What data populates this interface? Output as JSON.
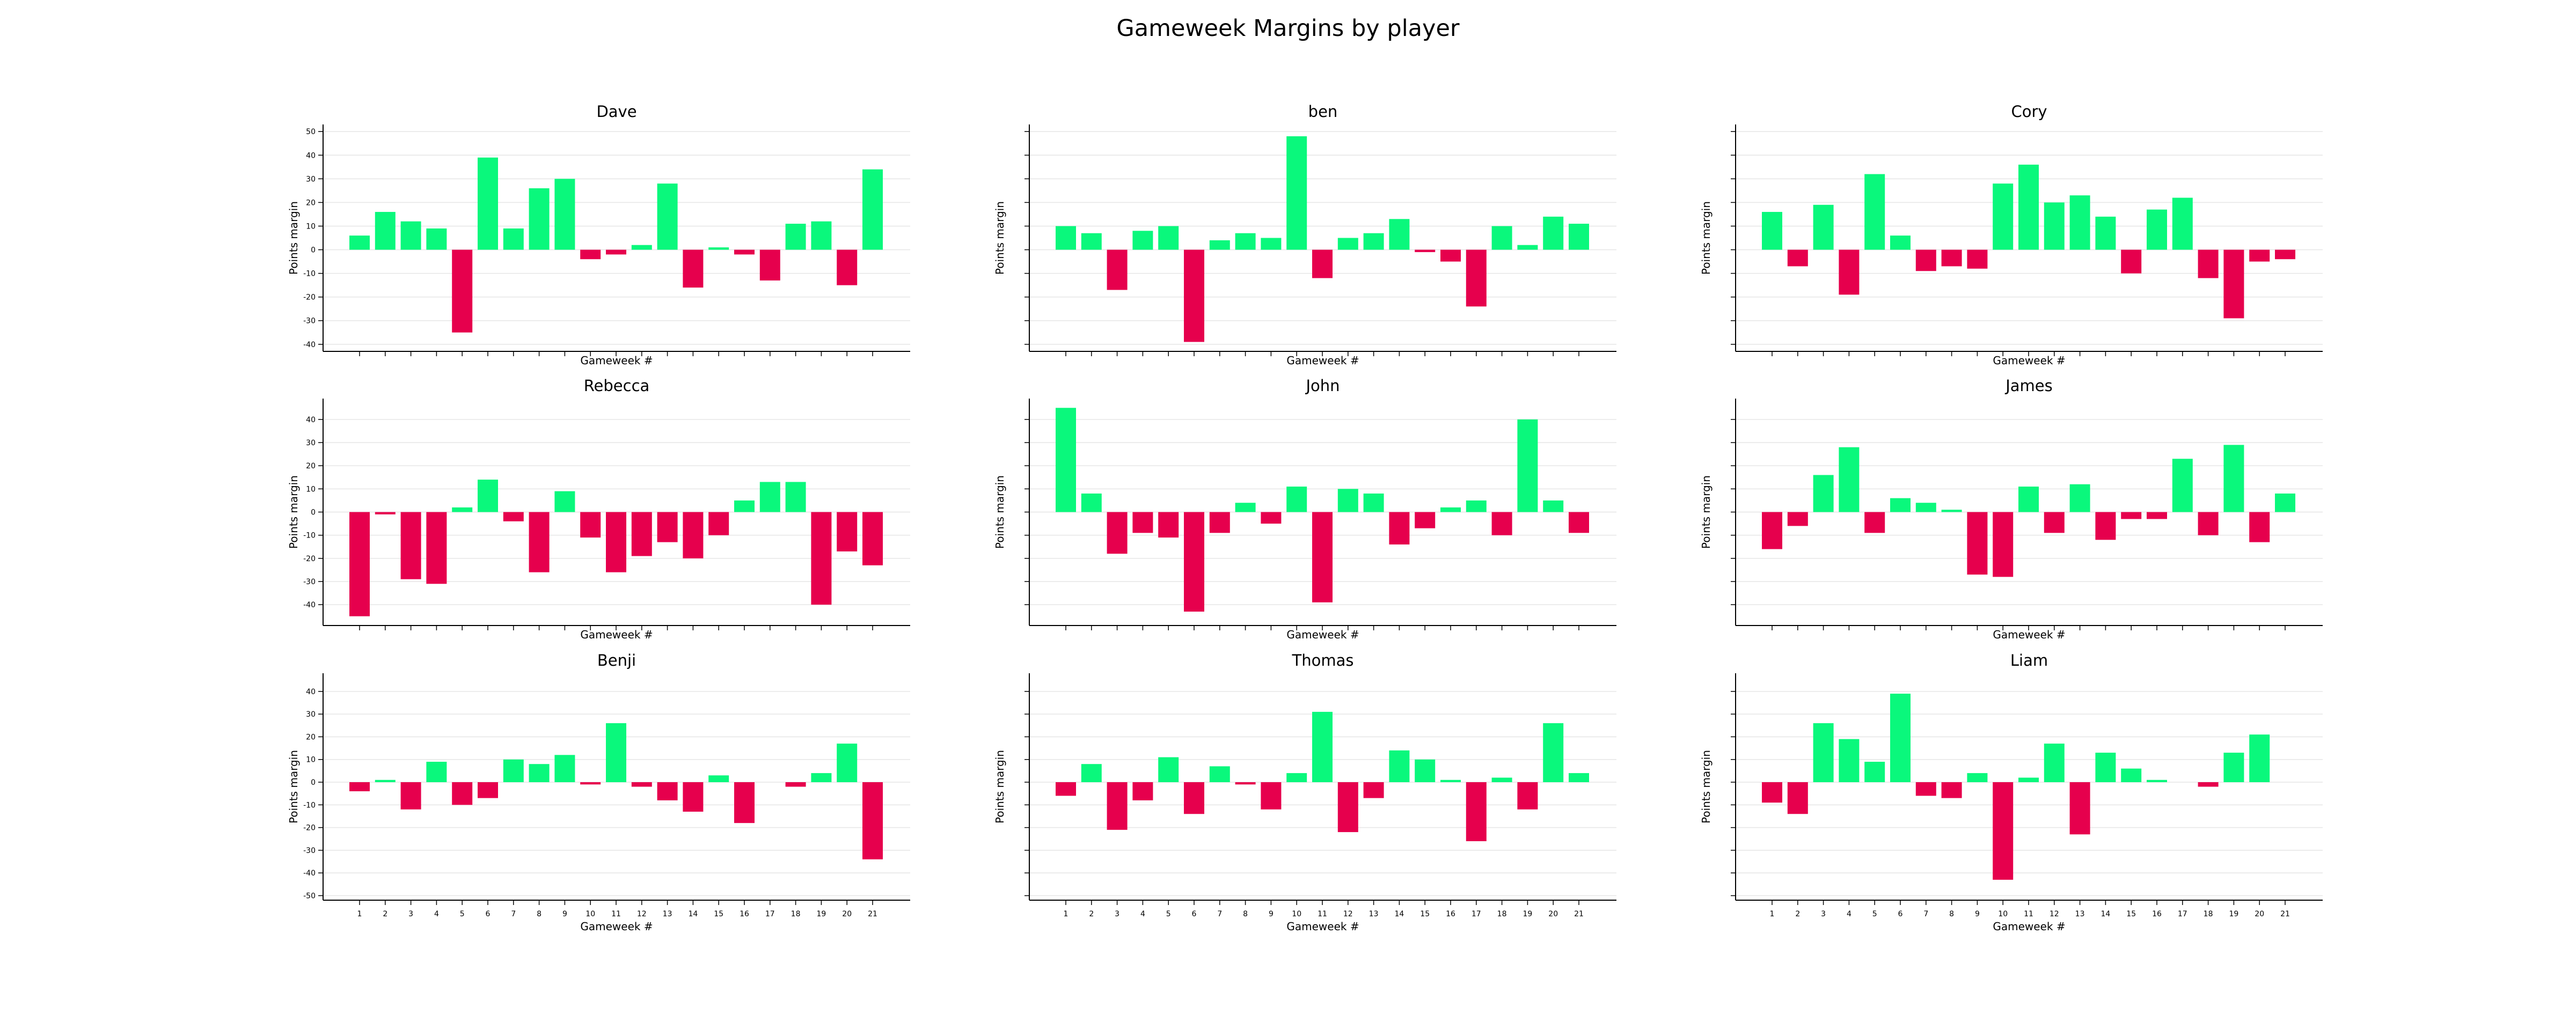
{
  "title": "Gameweek Margins by player",
  "colors": {
    "positive": "#0af87c",
    "negative": "#e6004d"
  },
  "chart_data": [
    {
      "type": "bar",
      "title": "Dave",
      "xlabel": "Gameweek #",
      "ylabel": "Points margin",
      "categories": [
        "1",
        "2",
        "3",
        "4",
        "5",
        "6",
        "7",
        "8",
        "9",
        "10",
        "11",
        "12",
        "13",
        "14",
        "15",
        "16",
        "17",
        "18",
        "19",
        "20",
        "21"
      ],
      "values": [
        6,
        16,
        12,
        9,
        -35,
        39,
        9,
        26,
        30,
        -4,
        -2,
        2,
        28,
        -16,
        1,
        -2,
        -13,
        11,
        12,
        -15,
        34
      ],
      "ylim": [
        -43,
        53
      ],
      "yticks": [
        -40,
        -30,
        -20,
        -10,
        0,
        10,
        20,
        30,
        40,
        50
      ]
    },
    {
      "type": "bar",
      "title": "ben",
      "xlabel": "Gameweek #",
      "ylabel": "Points margin",
      "categories": [
        "1",
        "2",
        "3",
        "4",
        "5",
        "6",
        "7",
        "8",
        "9",
        "10",
        "11",
        "12",
        "13",
        "14",
        "15",
        "16",
        "17",
        "18",
        "19",
        "20",
        "21"
      ],
      "values": [
        10,
        7,
        -17,
        8,
        10,
        -39,
        4,
        7,
        5,
        48,
        -12,
        5,
        7,
        13,
        -1,
        -5,
        -24,
        10,
        2,
        14,
        11
      ],
      "ylim": [
        -43,
        53
      ],
      "yticks": [
        -40,
        -30,
        -20,
        -10,
        0,
        10,
        20,
        30,
        40,
        50
      ]
    },
    {
      "type": "bar",
      "title": "Cory",
      "xlabel": "Gameweek #",
      "ylabel": "Points margin",
      "categories": [
        "1",
        "2",
        "3",
        "4",
        "5",
        "6",
        "7",
        "8",
        "9",
        "10",
        "11",
        "12",
        "13",
        "14",
        "15",
        "16",
        "17",
        "18",
        "19",
        "20",
        "21"
      ],
      "values": [
        16,
        -7,
        19,
        -19,
        32,
        6,
        -9,
        -7,
        -8,
        28,
        36,
        20,
        23,
        14,
        -10,
        17,
        22,
        -12,
        -29,
        -5,
        -4
      ],
      "ylim": [
        -43,
        53
      ],
      "yticks": [
        -40,
        -30,
        -20,
        -10,
        0,
        10,
        20,
        30,
        40,
        50
      ]
    },
    {
      "type": "bar",
      "title": "Rebecca",
      "xlabel": "Gameweek #",
      "ylabel": "Points margin",
      "categories": [
        "1",
        "2",
        "3",
        "4",
        "5",
        "6",
        "7",
        "8",
        "9",
        "10",
        "11",
        "12",
        "13",
        "14",
        "15",
        "16",
        "17",
        "18",
        "19",
        "20",
        "21"
      ],
      "values": [
        -45,
        -1,
        -29,
        -31,
        2,
        14,
        -4,
        -26,
        9,
        -11,
        -26,
        -19,
        -13,
        -20,
        -10,
        5,
        13,
        13,
        -40,
        -17,
        -23
      ],
      "ylim": [
        -49,
        49
      ],
      "yticks": [
        -40,
        -30,
        -20,
        -10,
        0,
        10,
        20,
        30,
        40
      ]
    },
    {
      "type": "bar",
      "title": "John",
      "xlabel": "Gameweek #",
      "ylabel": "Points margin",
      "categories": [
        "1",
        "2",
        "3",
        "4",
        "5",
        "6",
        "7",
        "8",
        "9",
        "10",
        "11",
        "12",
        "13",
        "14",
        "15",
        "16",
        "17",
        "18",
        "19",
        "20",
        "21"
      ],
      "values": [
        45,
        8,
        -18,
        -9,
        -11,
        -43,
        -9,
        4,
        -5,
        11,
        -39,
        10,
        8,
        -14,
        -7,
        2,
        5,
        -10,
        40,
        5,
        -9
      ],
      "ylim": [
        -49,
        49
      ],
      "yticks": [
        -40,
        -30,
        -20,
        -10,
        0,
        10,
        20,
        30,
        40
      ]
    },
    {
      "type": "bar",
      "title": "James",
      "xlabel": "Gameweek #",
      "ylabel": "Points margin",
      "categories": [
        "1",
        "2",
        "3",
        "4",
        "5",
        "6",
        "7",
        "8",
        "9",
        "10",
        "11",
        "12",
        "13",
        "14",
        "15",
        "16",
        "17",
        "18",
        "19",
        "20",
        "21"
      ],
      "values": [
        -16,
        -6,
        16,
        28,
        -9,
        6,
        4,
        1,
        -27,
        -28,
        11,
        -9,
        12,
        -12,
        -3,
        -3,
        23,
        -10,
        29,
        -13,
        8
      ],
      "ylim": [
        -49,
        49
      ],
      "yticks": [
        -40,
        -30,
        -20,
        -10,
        0,
        10,
        20,
        30,
        40
      ]
    },
    {
      "type": "bar",
      "title": "Benji",
      "xlabel": "Gameweek #",
      "ylabel": "Points margin",
      "categories": [
        "1",
        "2",
        "3",
        "4",
        "5",
        "6",
        "7",
        "8",
        "9",
        "10",
        "11",
        "12",
        "13",
        "14",
        "15",
        "16",
        "17",
        "18",
        "19",
        "20",
        "21"
      ],
      "values": [
        -4,
        1,
        -12,
        9,
        -10,
        -7,
        10,
        8,
        12,
        -1,
        26,
        -2,
        -8,
        -13,
        3,
        -18,
        0,
        -2,
        4,
        17,
        -34
      ],
      "ylim": [
        -52,
        48
      ],
      "yticks": [
        -50,
        -40,
        -30,
        -20,
        -10,
        0,
        10,
        20,
        30,
        40
      ]
    },
    {
      "type": "bar",
      "title": "Thomas",
      "xlabel": "Gameweek #",
      "ylabel": "Points margin",
      "categories": [
        "1",
        "2",
        "3",
        "4",
        "5",
        "6",
        "7",
        "8",
        "9",
        "10",
        "11",
        "12",
        "13",
        "14",
        "15",
        "16",
        "17",
        "18",
        "19",
        "20",
        "21"
      ],
      "values": [
        -6,
        8,
        -21,
        -8,
        11,
        -14,
        7,
        -1,
        -12,
        4,
        31,
        -22,
        -7,
        14,
        10,
        1,
        -26,
        2,
        -12,
        26,
        4
      ],
      "ylim": [
        -52,
        48
      ],
      "yticks": [
        -50,
        -40,
        -30,
        -20,
        -10,
        0,
        10,
        20,
        30,
        40
      ]
    },
    {
      "type": "bar",
      "title": "Liam",
      "xlabel": "Gameweek #",
      "ylabel": "Points margin",
      "categories": [
        "1",
        "2",
        "3",
        "4",
        "5",
        "6",
        "7",
        "8",
        "9",
        "10",
        "11",
        "12",
        "13",
        "14",
        "15",
        "16",
        "17",
        "18",
        "19",
        "20",
        "21"
      ],
      "values": [
        -9,
        -14,
        26,
        19,
        9,
        39,
        -6,
        -7,
        4,
        -43,
        2,
        17,
        -23,
        13,
        6,
        1,
        0,
        -2,
        13,
        21,
        0
      ],
      "ylim": [
        -52,
        48
      ],
      "yticks": [
        -50,
        -40,
        -30,
        -20,
        -10,
        0,
        10,
        20,
        30,
        40
      ]
    }
  ]
}
